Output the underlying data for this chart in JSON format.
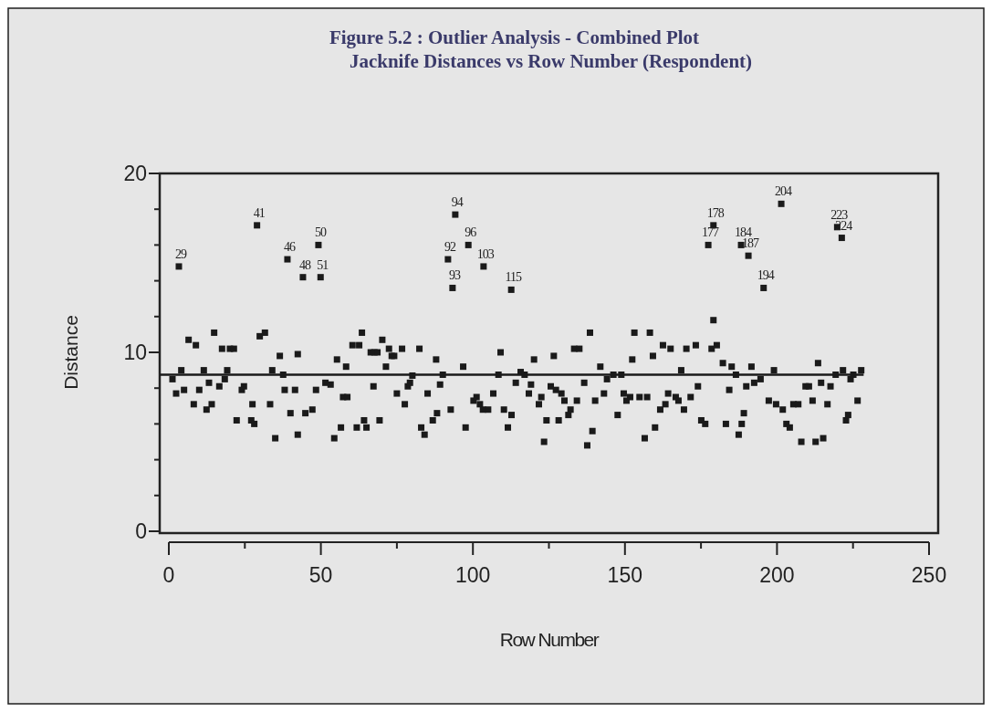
{
  "chart_data": {
    "type": "scatter",
    "title": "Figure 5.2 :  Outlier Analysis - Combined Plot",
    "subtitle": "Jacknife Distances vs Row Number (Respondent)",
    "xlabel": "Row Number",
    "ylabel": "Distance",
    "marker": "square",
    "xlim": [
      0,
      250
    ],
    "ylim": [
      0,
      20
    ],
    "xticks": [
      0,
      {
        "value": 25,
        "label": null
      },
      50,
      {
        "value": 75,
        "label": null
      },
      100,
      {
        "value": 125,
        "label": null
      },
      150,
      {
        "value": 175,
        "label": null
      },
      200,
      {
        "value": 225,
        "label": null
      },
      250
    ],
    "yticks": [
      0,
      {
        "value": 2,
        "label": null
      },
      {
        "value": 4,
        "label": null
      },
      {
        "value": 6,
        "label": null
      },
      {
        "value": 8,
        "label": null
      },
      10,
      {
        "value": 12,
        "label": null
      },
      {
        "value": 14,
        "label": null
      },
      {
        "value": 16,
        "label": null
      },
      {
        "value": 18,
        "label": null
      },
      20
    ],
    "ref_lines": [
      {
        "axis": "y",
        "value": 8.75,
        "color": "#1a1a1a",
        "line_style": "solid"
      }
    ],
    "series": [
      {
        "color": "#1a1a1a",
        "x": [
          1.2,
          2.4,
          3.3,
          4.1,
          5.0,
          6.5,
          8.9,
          8.2,
          10,
          11.5,
          12.4,
          13.2,
          14.1,
          14.9,
          16.6,
          17.5,
          18.4,
          19.2,
          20.1,
          21.4,
          22.3,
          24,
          24.7,
          27.1,
          28.1,
          27.5,
          29,
          29.9,
          31.6,
          33.3,
          34,
          35,
          36.5,
          37.6,
          38.1,
          39,
          40,
          41.5,
          42.4,
          42.4,
          44.1,
          44.9,
          47.2,
          48.4,
          49.2,
          49.9,
          51.5,
          53.2,
          54.4,
          55.3,
          56.6,
          57.3,
          58.7,
          58.3,
          60.4,
          61.8,
          62.6,
          63.5,
          64.2,
          65,
          66.4,
          67.3,
          67.6,
          68.6,
          69.3,
          70.2,
          71.4,
          72.4,
          73.3,
          74.1,
          75,
          76.7,
          77.6,
          78.6,
          79.3,
          80.1,
          82.4,
          83,
          84.1,
          85.1,
          86.8,
          87.9,
          88.2,
          89.2,
          90.1,
          91.8,
          92.7,
          93.3,
          94.2,
          96.8,
          97.6,
          98.5,
          100.2,
          101.2,
          102.3,
          103.3,
          103.5,
          105,
          106.7,
          108.4,
          109.1,
          110.2,
          111.5,
          112.6,
          112.7,
          114.1,
          115.7,
          117,
          118.4,
          119.1,
          120.1,
          121.7,
          122.5,
          123.4,
          124.2,
          125.6,
          126.6,
          127.3,
          128.2,
          129.1,
          130.1,
          131.4,
          132.1,
          133.3,
          134.2,
          135,
          136.6,
          137.6,
          138.5,
          139.3,
          140.2,
          141.9,
          143.1,
          144.1,
          146.2,
          147.6,
          148.8,
          149.6,
          150.5,
          151.7,
          152.4,
          153.1,
          154.8,
          156.5,
          157.3,
          158.2,
          159.2,
          159.9,
          161.6,
          162.5,
          163.3,
          164.2,
          165,
          166.7,
          167.6,
          168.5,
          169.4,
          170.2,
          171.6,
          173.3,
          174,
          175.1,
          176.4,
          177.4,
          178.5,
          179.1,
          179.1,
          180.2,
          182.2,
          183.2,
          184.3,
          185.1,
          186.5,
          187.4,
          188.2,
          188.4,
          189.1,
          189.9,
          190.6,
          191.6,
          192.5,
          194.6,
          195.6,
          197.3,
          199,
          199.7,
          201.4,
          201.9,
          203.1,
          204.2,
          205.4,
          207,
          208,
          209.4,
          210.5,
          211.7,
          212.7,
          213.5,
          214.5,
          215.2,
          216.6,
          217.6,
          219.3,
          219.8,
          221.3,
          221.7,
          222.7,
          223.4,
          224.2,
          225.1,
          226.5,
          227.7
        ],
        "values": [
          8.5,
          7.7,
          14.8,
          9.0,
          7.9,
          10.7,
          10.4,
          7.1,
          7.9,
          9.0,
          6.8,
          8.3,
          7.1,
          11.1,
          8.1,
          10.2,
          8.5,
          9.0,
          10.2,
          10.2,
          6.2,
          7.9,
          8.1,
          6.2,
          6.0,
          7.1,
          17.1,
          10.9,
          11.1,
          7.1,
          9.0,
          5.2,
          9.8,
          8.75,
          7.9,
          15.2,
          6.6,
          7.9,
          9.9,
          5.4,
          14.2,
          6.6,
          6.8,
          7.9,
          16.0,
          14.2,
          8.3,
          8.2,
          5.2,
          9.6,
          5.8,
          7.5,
          7.5,
          9.2,
          10.4,
          5.8,
          10.4,
          11.1,
          6.2,
          5.8,
          10.0,
          8.1,
          10.0,
          10.0,
          6.2,
          10.7,
          9.2,
          10.2,
          9.8,
          9.8,
          7.7,
          10.2,
          7.1,
          8.1,
          8.3,
          8.7,
          10.2,
          5.8,
          5.4,
          7.7,
          6.2,
          9.6,
          6.6,
          8.2,
          8.75,
          15.2,
          6.8,
          13.6,
          17.7,
          9.2,
          5.8,
          16.0,
          7.3,
          7.5,
          7.1,
          6.8,
          14.8,
          6.8,
          7.7,
          8.75,
          10.0,
          6.8,
          5.8,
          13.5,
          6.5,
          8.3,
          8.9,
          8.75,
          7.7,
          8.2,
          9.6,
          7.1,
          7.5,
          5.0,
          6.2,
          8.1,
          9.8,
          7.9,
          6.2,
          7.7,
          7.3,
          6.5,
          6.8,
          10.2,
          7.3,
          10.2,
          8.3,
          4.8,
          11.1,
          5.6,
          7.3,
          9.2,
          7.7,
          8.5,
          8.75,
          6.5,
          8.75,
          7.7,
          7.3,
          7.5,
          9.6,
          11.1,
          7.5,
          5.2,
          7.5,
          11.1,
          9.8,
          5.8,
          6.8,
          10.4,
          7.1,
          7.7,
          10.2,
          7.5,
          7.3,
          9.0,
          6.8,
          10.2,
          7.5,
          10.4,
          8.1,
          6.2,
          6.0,
          16.0,
          10.2,
          11.8,
          17.1,
          10.4,
          9.4,
          6.0,
          7.9,
          9.2,
          8.75,
          5.4,
          16.0,
          6.0,
          6.6,
          8.1,
          15.4,
          9.2,
          8.3,
          8.5,
          13.6,
          7.3,
          9.0,
          7.1,
          18.3,
          6.8,
          6.0,
          5.8,
          7.1,
          7.1,
          5.0,
          8.1,
          8.1,
          7.3,
          5.0,
          9.4,
          8.3,
          5.2,
          7.1,
          8.1,
          8.75,
          17.0,
          16.4,
          9.0,
          6.2,
          6.5,
          8.5,
          8.75,
          7.3,
          9.0
        ]
      }
    ],
    "annotations": [
      {
        "text": "29",
        "x": 3.3,
        "y": 14.8
      },
      {
        "text": "41",
        "x": 29,
        "y": 17.1
      },
      {
        "text": "46",
        "x": 39,
        "y": 15.2
      },
      {
        "text": "48",
        "x": 44.1,
        "y": 14.2
      },
      {
        "text": "50",
        "x": 49.2,
        "y": 16.0
      },
      {
        "text": "51",
        "x": 49.9,
        "y": 14.2
      },
      {
        "text": "92",
        "x": 91.8,
        "y": 15.2
      },
      {
        "text": "93",
        "x": 93.3,
        "y": 13.6
      },
      {
        "text": "94",
        "x": 94.2,
        "y": 17.7
      },
      {
        "text": "96",
        "x": 98.5,
        "y": 16.0
      },
      {
        "text": "103",
        "x": 103.5,
        "y": 14.8
      },
      {
        "text": "115",
        "x": 112.6,
        "y": 13.5
      },
      {
        "text": "177",
        "x": 177.4,
        "y": 16.0
      },
      {
        "text": "178",
        "x": 179.1,
        "y": 17.1
      },
      {
        "text": "184",
        "x": 188.2,
        "y": 16.0
      },
      {
        "text": "187",
        "x": 190.6,
        "y": 15.4
      },
      {
        "text": "194",
        "x": 195.6,
        "y": 13.6
      },
      {
        "text": "204",
        "x": 201.4,
        "y": 18.3
      },
      {
        "text": "223",
        "x": 219.8,
        "y": 17.0
      },
      {
        "text": "224",
        "x": 221.3,
        "y": 16.4
      }
    ]
  }
}
